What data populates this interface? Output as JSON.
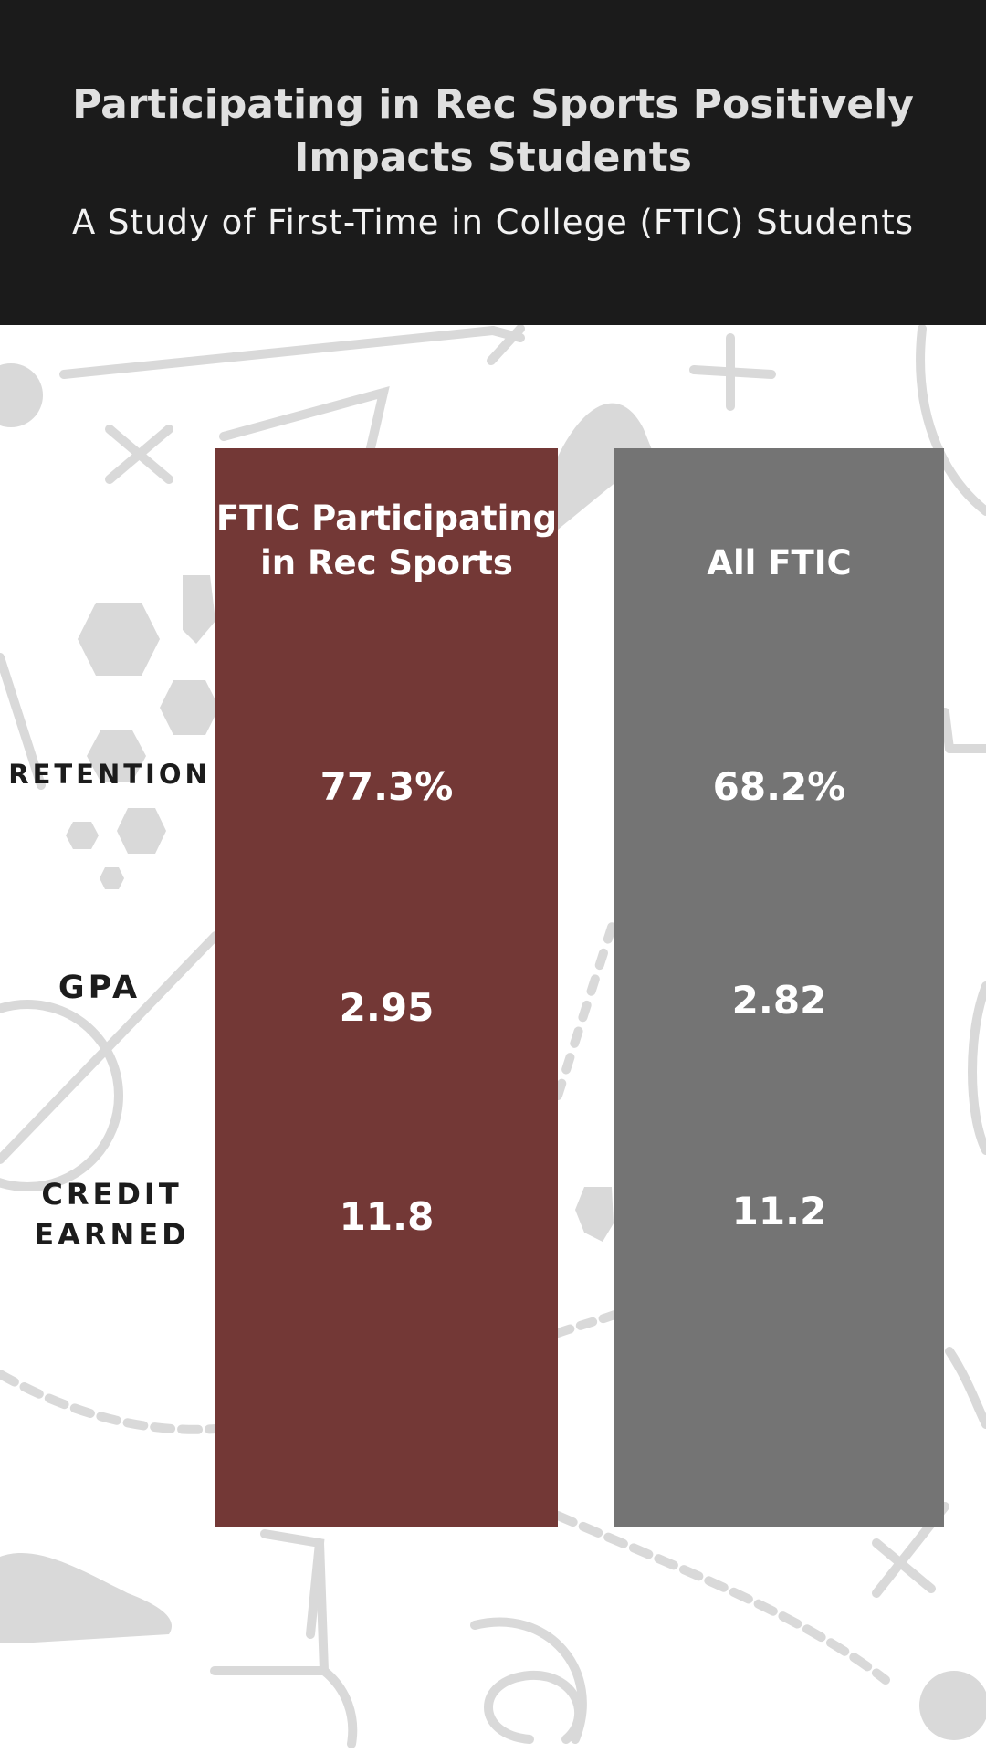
{
  "header": {
    "title": "Participating in Rec Sports Positively Impacts Students",
    "subtitle": "A Study of First-Time in College (FTIC) Students"
  },
  "colors": {
    "header_bg": "#1b1b1b",
    "rec_column": "#733836",
    "all_column": "#747474",
    "art_gray": "#d9d9d9"
  },
  "rows": {
    "retention": "RETENTION",
    "gpa": "GPA",
    "credit": "CREDIT EARNED"
  },
  "columns": {
    "rec": {
      "label": "FTIC Participating in Rec Sports",
      "retention": "77.3%",
      "gpa": "2.95",
      "credit": "11.8"
    },
    "all": {
      "label": "All FTIC",
      "retention": "68.2%",
      "gpa": "2.82",
      "credit": "11.2"
    }
  },
  "decoration": [
    "sports-playbook-doodles",
    "soccer-ball-icon",
    "cleat-icon",
    "whistle-icon"
  ]
}
